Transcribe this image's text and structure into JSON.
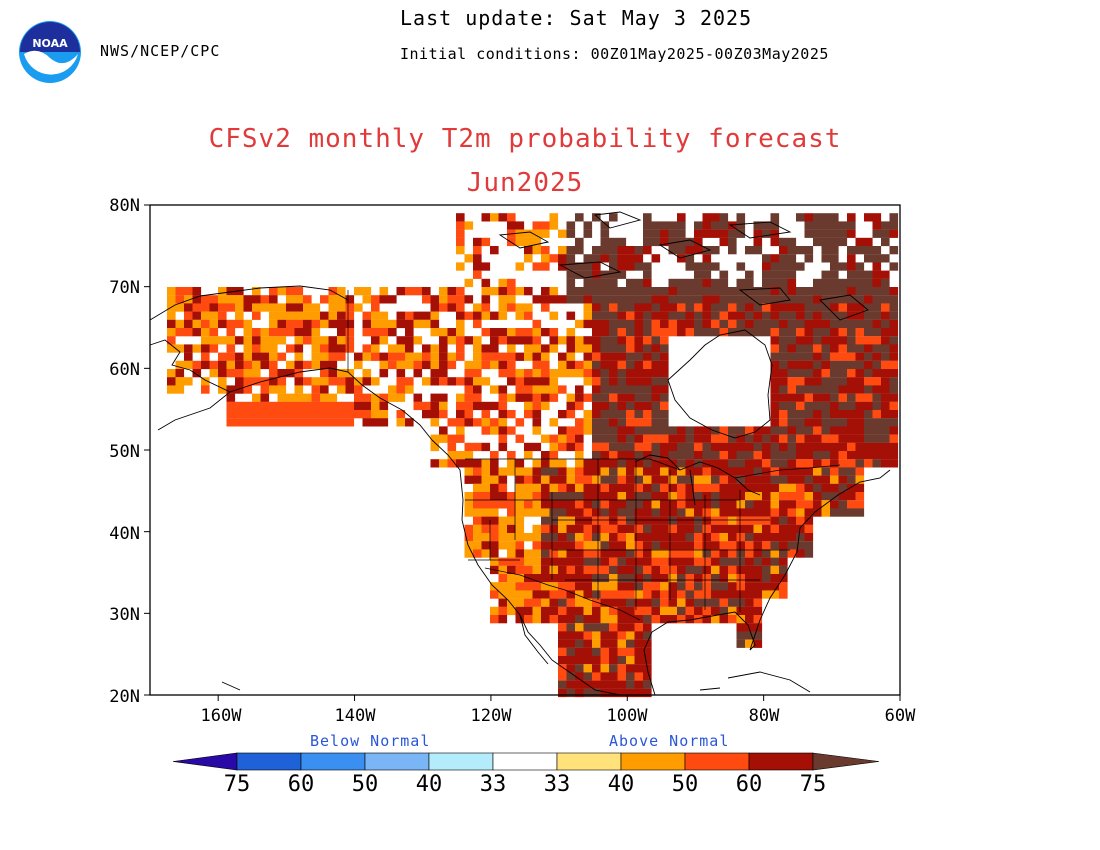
{
  "header": {
    "agency": "NWS/NCEP/CPC",
    "last_update": "Last update: Sat May 3 2025",
    "initial_conditions": "Initial conditions: 00Z01May2025-00Z03May2025",
    "logo_text": "NOAA"
  },
  "title": {
    "line1": "CFSv2 monthly T2m probability forecast",
    "line2": "Jun2025"
  },
  "axes": {
    "lat_labels": [
      "80N",
      "70N",
      "60N",
      "50N",
      "40N",
      "30N",
      "20N"
    ],
    "lon_labels": [
      "160W",
      "140W",
      "120W",
      "100W",
      "80W",
      "60W"
    ],
    "lat_range": [
      20,
      80
    ],
    "lon_range": [
      -170,
      -60
    ]
  },
  "colorbar": {
    "below_title": "Below Normal",
    "above_title": "Above Normal",
    "labels": [
      "75",
      "60",
      "50",
      "40",
      "33",
      "33",
      "40",
      "50",
      "60",
      "75"
    ],
    "colors": [
      "#2a0aa6",
      "#1f62d8",
      "#3a8ff0",
      "#7ab5f5",
      "#b4ecfb",
      "#ffffff",
      "#ffe27a",
      "#ff9c00",
      "#ff4a10",
      "#a40f06",
      "#6b3a2e"
    ]
  },
  "colors": {
    "title": "#e03a3a",
    "above_33_40": "#ffe27a",
    "above_40_50": "#ff9c00",
    "above_50_60": "#ff4a10",
    "above_60_75": "#a40f06",
    "above_75": "#6b3a2e",
    "below_33_40": "#b4ecfb",
    "below_40_50": "#7ab5f5"
  }
}
